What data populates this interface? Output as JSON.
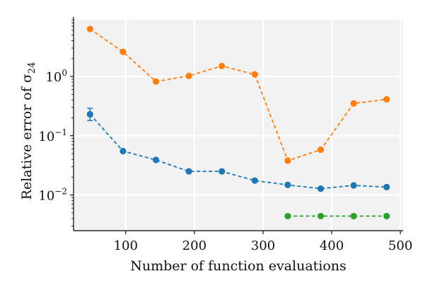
{
  "chart_data": {
    "type": "line",
    "xlabel": "Number of function evaluations",
    "ylabel": "Relative error of σ",
    "ylabel_subscript": "24",
    "yscale": "log",
    "xlim": [
      24,
      504
    ],
    "ylim": [
      0.0025,
      9.0
    ],
    "xticks": [
      100,
      200,
      300,
      400,
      500
    ],
    "xtick_labels": [
      "100",
      "200",
      "300",
      "400",
      "500"
    ],
    "yticks": [
      0.01,
      0.1,
      1
    ],
    "ytick_labels": [
      {
        "base": "10",
        "exp": "−2"
      },
      {
        "base": "10",
        "exp": "−1"
      },
      {
        "base": "10",
        "exp": "0"
      }
    ],
    "grid": true,
    "background": "#f2f2f2",
    "series": [
      {
        "color": "#ff7f0e",
        "style": "dashed",
        "marker": "circle",
        "x": [
          48,
          96,
          144,
          192,
          240,
          288,
          336,
          384,
          432,
          480
        ],
        "y": [
          6.3,
          2.6,
          0.82,
          1.02,
          1.5,
          1.08,
          0.038,
          0.058,
          0.35,
          0.41
        ]
      },
      {
        "color": "#1f77b4",
        "style": "dashed",
        "marker": "circle",
        "x": [
          48,
          96,
          144,
          192,
          240,
          288,
          336,
          384,
          432,
          480
        ],
        "y": [
          0.23,
          0.055,
          0.039,
          0.025,
          0.025,
          0.0175,
          0.0148,
          0.0128,
          0.0145,
          0.0136
        ],
        "error_bars": [
          {
            "x": 48,
            "low": 0.18,
            "high": 0.29
          }
        ]
      },
      {
        "color": "#2ca02c",
        "style": "dashed",
        "marker": "circle",
        "x": [
          336,
          384,
          432,
          480
        ],
        "y": [
          0.0044,
          0.0044,
          0.0044,
          0.0044
        ]
      }
    ]
  }
}
